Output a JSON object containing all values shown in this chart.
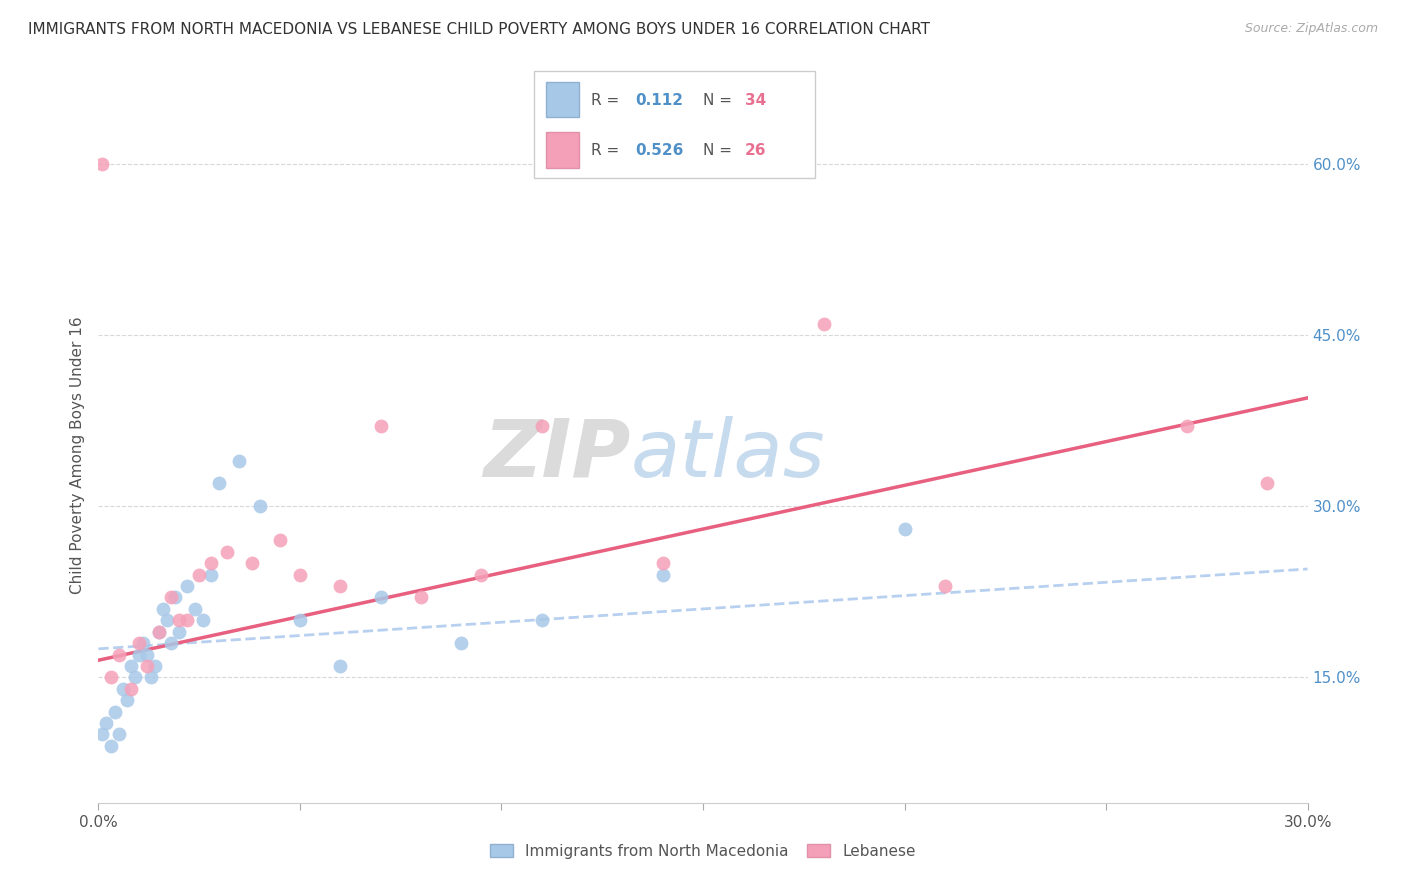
{
  "title": "IMMIGRANTS FROM NORTH MACEDONIA VS LEBANESE CHILD POVERTY AMONG BOYS UNDER 16 CORRELATION CHART",
  "source": "Source: ZipAtlas.com",
  "ylabel": "Child Poverty Among Boys Under 16",
  "xlim": [
    0.0,
    0.3
  ],
  "ylim": [
    0.04,
    0.65
  ],
  "xtick_values": [
    0.0,
    0.05,
    0.1,
    0.15,
    0.2,
    0.25,
    0.3
  ],
  "xtick_labels": [
    "0.0%",
    "",
    "",
    "",
    "",
    "",
    "30.0%"
  ],
  "ytick_values": [
    0.15,
    0.3,
    0.45,
    0.6
  ],
  "ytick_labels": [
    "15.0%",
    "30.0%",
    "45.0%",
    "60.0%"
  ],
  "color_blue": "#a8c8e8",
  "color_pink": "#f4a0b8",
  "color_line_blue": "#b8d0f0",
  "color_line_pink": "#e86080",
  "watermark_zip": "ZIP",
  "watermark_atlas": "atlas",
  "legend_label1": "Immigrants from North Macedonia",
  "legend_label2": "Lebanese",
  "blue_scatter_x": [
    0.001,
    0.002,
    0.003,
    0.004,
    0.005,
    0.006,
    0.007,
    0.008,
    0.009,
    0.01,
    0.011,
    0.012,
    0.013,
    0.014,
    0.015,
    0.016,
    0.017,
    0.018,
    0.019,
    0.02,
    0.022,
    0.024,
    0.026,
    0.028,
    0.03,
    0.035,
    0.04,
    0.05,
    0.06,
    0.07,
    0.09,
    0.11,
    0.14,
    0.2
  ],
  "blue_scatter_y": [
    0.1,
    0.11,
    0.09,
    0.12,
    0.1,
    0.14,
    0.13,
    0.16,
    0.15,
    0.17,
    0.18,
    0.17,
    0.15,
    0.16,
    0.19,
    0.21,
    0.2,
    0.18,
    0.22,
    0.19,
    0.23,
    0.21,
    0.2,
    0.24,
    0.32,
    0.34,
    0.3,
    0.2,
    0.16,
    0.22,
    0.18,
    0.2,
    0.24,
    0.28
  ],
  "pink_scatter_x": [
    0.001,
    0.003,
    0.005,
    0.008,
    0.01,
    0.012,
    0.015,
    0.018,
    0.02,
    0.022,
    0.025,
    0.028,
    0.032,
    0.038,
    0.045,
    0.05,
    0.06,
    0.07,
    0.08,
    0.095,
    0.11,
    0.14,
    0.18,
    0.21,
    0.27,
    0.29
  ],
  "pink_scatter_y": [
    0.6,
    0.15,
    0.17,
    0.14,
    0.18,
    0.16,
    0.19,
    0.22,
    0.2,
    0.2,
    0.24,
    0.25,
    0.26,
    0.25,
    0.27,
    0.24,
    0.23,
    0.37,
    0.22,
    0.24,
    0.37,
    0.25,
    0.46,
    0.23,
    0.37,
    0.32
  ],
  "blue_line_x": [
    0.0,
    0.3
  ],
  "blue_line_y": [
    0.175,
    0.245
  ],
  "pink_line_x": [
    0.0,
    0.3
  ],
  "pink_line_y": [
    0.165,
    0.395
  ]
}
